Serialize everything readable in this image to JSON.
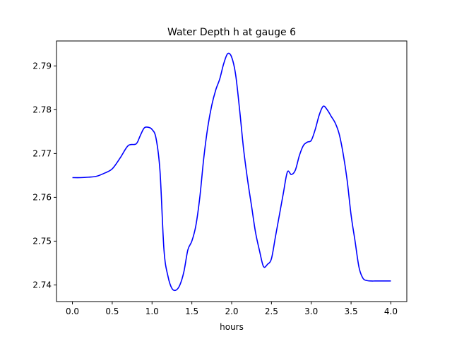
{
  "chart_data": {
    "type": "line",
    "title": "Water Depth h at gauge 6",
    "xlabel": "hours",
    "ylabel": "",
    "xlim": [
      -0.2,
      4.2
    ],
    "ylim": [
      2.7362,
      2.7957
    ],
    "xticks": [
      0.0,
      0.5,
      1.0,
      1.5,
      2.0,
      2.5,
      3.0,
      3.5,
      4.0
    ],
    "xtick_labels": [
      "0.0",
      "0.5",
      "1.0",
      "1.5",
      "2.0",
      "2.5",
      "3.0",
      "3.5",
      "4.0"
    ],
    "yticks": [
      2.74,
      2.75,
      2.76,
      2.77,
      2.78,
      2.79
    ],
    "ytick_labels": [
      "2.74",
      "2.75",
      "2.76",
      "2.77",
      "2.78",
      "2.79"
    ],
    "grid": false,
    "series": [
      {
        "color": "#0000ff",
        "x": [
          0.0,
          0.1,
          0.2,
          0.3,
          0.4,
          0.5,
          0.6,
          0.7,
          0.8,
          0.85,
          0.9,
          0.95,
          1.0,
          1.05,
          1.1,
          1.15,
          1.2,
          1.25,
          1.3,
          1.35,
          1.4,
          1.45,
          1.5,
          1.55,
          1.6,
          1.65,
          1.7,
          1.75,
          1.8,
          1.85,
          1.9,
          1.95,
          2.0,
          2.05,
          2.1,
          2.15,
          2.2,
          2.25,
          2.3,
          2.35,
          2.4,
          2.45,
          2.5,
          2.55,
          2.6,
          2.65,
          2.7,
          2.75,
          2.8,
          2.85,
          2.9,
          2.95,
          3.0,
          3.05,
          3.1,
          3.15,
          3.2,
          3.25,
          3.3,
          3.35,
          3.4,
          3.45,
          3.5,
          3.55,
          3.6,
          3.65,
          3.7,
          3.75,
          3.8,
          3.85,
          3.9,
          3.95,
          4.0
        ],
        "y": [
          2.7645,
          2.7645,
          2.7646,
          2.7648,
          2.7655,
          2.7665,
          2.769,
          2.7718,
          2.7722,
          2.774,
          2.7758,
          2.776,
          2.7755,
          2.7735,
          2.766,
          2.748,
          2.742,
          2.7392,
          2.7388,
          2.74,
          2.743,
          2.748,
          2.75,
          2.7535,
          2.76,
          2.769,
          2.776,
          2.781,
          2.7845,
          2.787,
          2.7905,
          2.7928,
          2.792,
          2.788,
          2.78,
          2.771,
          2.764,
          2.758,
          2.752,
          2.7478,
          2.7442,
          2.7447,
          2.746,
          2.751,
          2.756,
          2.761,
          2.7658,
          2.7652,
          2.7662,
          2.7695,
          2.7718,
          2.7726,
          2.773,
          2.7755,
          2.7788,
          2.7808,
          2.78,
          2.7785,
          2.777,
          2.7745,
          2.77,
          2.764,
          2.756,
          2.75,
          2.744,
          2.7415,
          2.741,
          2.7409,
          2.7409,
          2.7409,
          2.7409,
          2.7409,
          2.7409
        ]
      }
    ]
  }
}
